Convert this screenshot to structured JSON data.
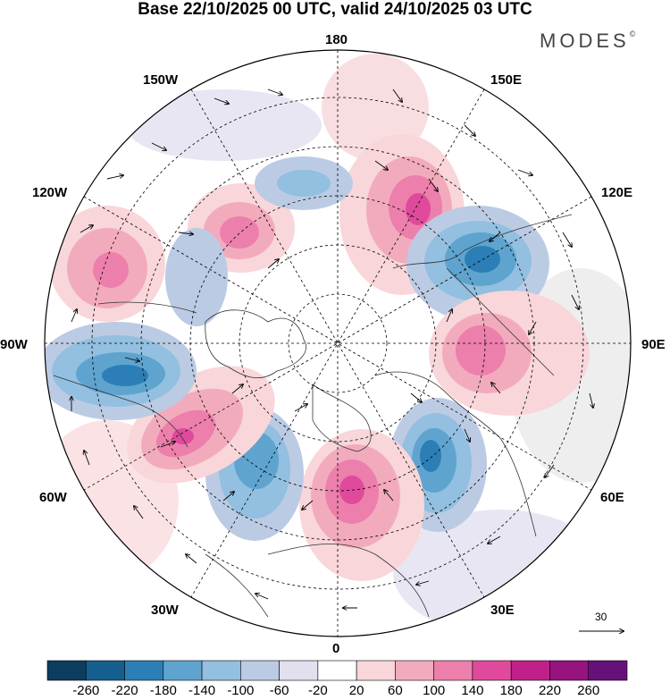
{
  "title": "Base 22/10/2025 00 UTC, valid 24/10/2025 03 UTC",
  "brand": "MODES",
  "brand_mark": "©",
  "longitude_labels": {
    "lon_180": "180",
    "lon_150e": "150E",
    "lon_120e": "120E",
    "lon_90e": "90E",
    "lon_60e": "60E",
    "lon_30e": "30E",
    "lon_0": "0",
    "lon_30w": "30W",
    "lon_60w": "60W",
    "lon_90w": "90W",
    "lon_120w": "120W",
    "lon_150w": "150W"
  },
  "wind_scale_label": "30",
  "colorbar": {
    "colors": [
      "#0d3d5e",
      "#145f8f",
      "#2b7fb6",
      "#5ea4cf",
      "#93bfe0",
      "#bccbe4",
      "#e2e0ef",
      "#ffffff",
      "#f8d6da",
      "#f2abbd",
      "#ec7fab",
      "#e04a9c",
      "#c0208a",
      "#961380",
      "#66117a"
    ],
    "labels": [
      "-260",
      "-220",
      "-180",
      "-140",
      "-100",
      "-60",
      "-20",
      "20",
      "60",
      "100",
      "140",
      "180",
      "220",
      "260"
    ]
  },
  "anomalies": [
    {
      "id": "pos-ne-pacific-russia",
      "value": 170
    },
    {
      "id": "neg-east-siberia",
      "value": -200
    },
    {
      "id": "pos-central-asia",
      "value": 140
    },
    {
      "id": "neg-west-russia",
      "value": -190
    },
    {
      "id": "pos-europe",
      "value": 180
    },
    {
      "id": "neg-north-atlantic",
      "value": -170
    },
    {
      "id": "pos-west-atlantic",
      "value": 170
    },
    {
      "id": "neg-canada",
      "value": -180
    },
    {
      "id": "pos-ne-pacific",
      "value": 130
    },
    {
      "id": "pos-alaska-sea",
      "value": 150
    }
  ]
}
